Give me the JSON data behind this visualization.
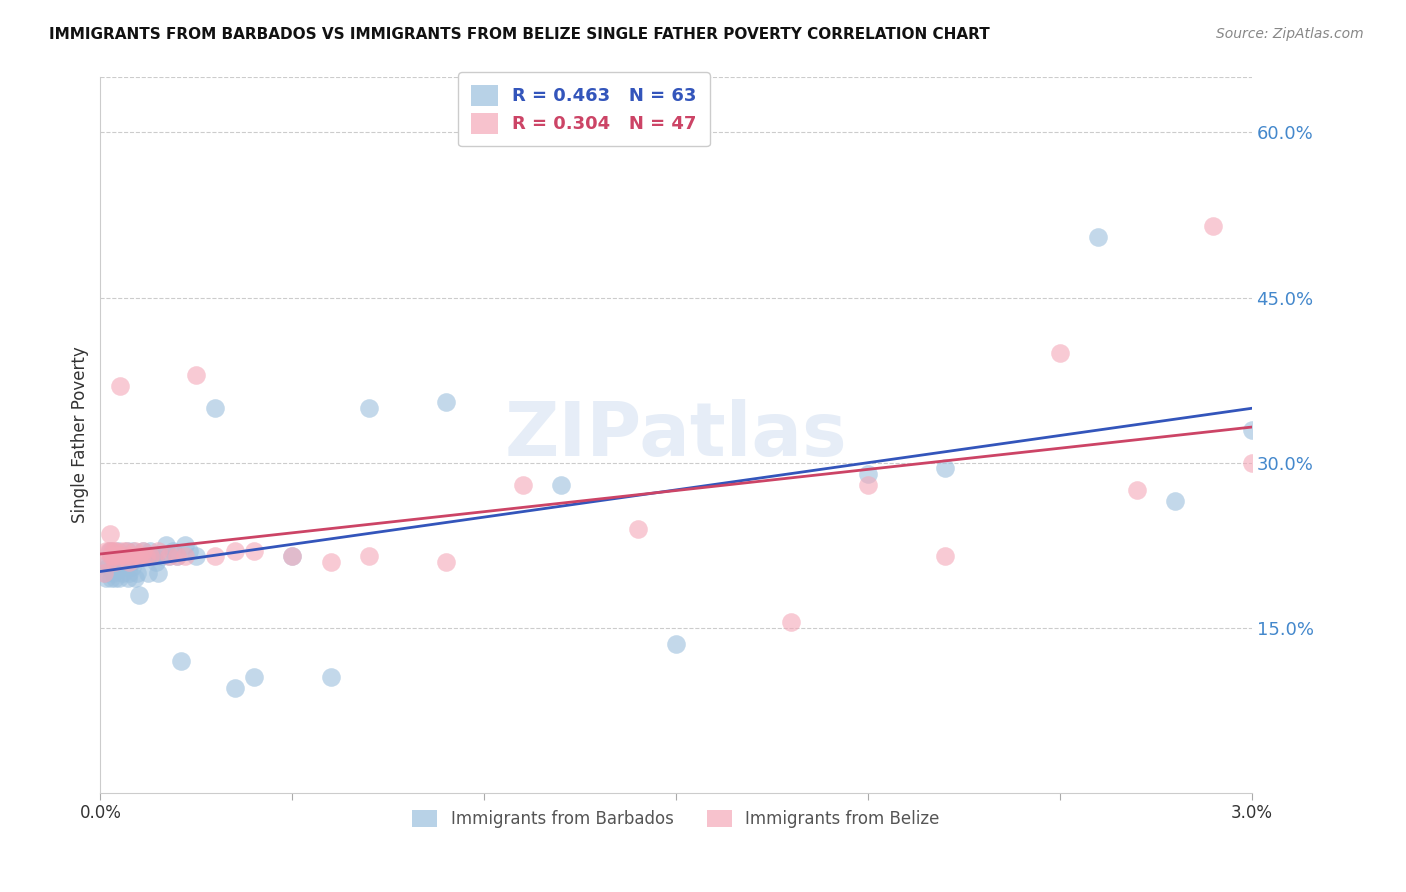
{
  "title": "IMMIGRANTS FROM BARBADOS VS IMMIGRANTS FROM BELIZE SINGLE FATHER POVERTY CORRELATION CHART",
  "source": "Source: ZipAtlas.com",
  "ylabel": "Single Father Poverty",
  "xlim": [
    0.0,
    0.03
  ],
  "ylim": [
    0.0,
    0.65
  ],
  "ytick_positions": [
    0.15,
    0.3,
    0.45,
    0.6
  ],
  "ytick_labels": [
    "15.0%",
    "30.0%",
    "45.0%",
    "60.0%"
  ],
  "barbados_color": "#9bbfdd",
  "belize_color": "#f4a8b8",
  "barbados_line_color": "#3355bb",
  "belize_line_color": "#cc4466",
  "watermark": "ZIPatlas",
  "barbados_x": [
    0.00012,
    0.00015,
    0.0002,
    0.00022,
    0.00025,
    0.00028,
    0.0003,
    0.00032,
    0.00035,
    0.00038,
    0.0004,
    0.00042,
    0.00045,
    0.00048,
    0.0005,
    0.00052,
    0.00055,
    0.00058,
    0.0006,
    0.00062,
    0.00065,
    0.0007,
    0.00072,
    0.00075,
    0.0008,
    0.00082,
    0.00085,
    0.0009,
    0.00095,
    0.001,
    0.00105,
    0.0011,
    0.00115,
    0.0012,
    0.00125,
    0.0013,
    0.00135,
    0.0014,
    0.00145,
    0.0015,
    0.0016,
    0.0017,
    0.0018,
    0.0019,
    0.002,
    0.0021,
    0.0022,
    0.0023,
    0.0025,
    0.003,
    0.0035,
    0.004,
    0.005,
    0.006,
    0.007,
    0.009,
    0.012,
    0.015,
    0.02,
    0.022,
    0.026,
    0.028,
    0.03
  ],
  "barbados_y": [
    0.2,
    0.195,
    0.205,
    0.21,
    0.22,
    0.195,
    0.215,
    0.2,
    0.215,
    0.195,
    0.21,
    0.205,
    0.22,
    0.195,
    0.21,
    0.205,
    0.215,
    0.2,
    0.21,
    0.215,
    0.205,
    0.22,
    0.195,
    0.2,
    0.21,
    0.205,
    0.22,
    0.195,
    0.2,
    0.18,
    0.215,
    0.22,
    0.215,
    0.215,
    0.2,
    0.22,
    0.215,
    0.215,
    0.21,
    0.2,
    0.215,
    0.225,
    0.215,
    0.22,
    0.215,
    0.12,
    0.225,
    0.22,
    0.215,
    0.35,
    0.095,
    0.105,
    0.215,
    0.105,
    0.35,
    0.355,
    0.28,
    0.135,
    0.29,
    0.295,
    0.505,
    0.265,
    0.33
  ],
  "belize_x": [
    0.0001,
    0.00015,
    0.0002,
    0.00022,
    0.00025,
    0.00028,
    0.0003,
    0.00032,
    0.00035,
    0.00038,
    0.0004,
    0.00045,
    0.0005,
    0.00055,
    0.0006,
    0.00065,
    0.0007,
    0.00075,
    0.0008,
    0.00085,
    0.0009,
    0.001,
    0.00105,
    0.0011,
    0.0012,
    0.0013,
    0.0015,
    0.0018,
    0.002,
    0.0022,
    0.0025,
    0.003,
    0.0035,
    0.004,
    0.005,
    0.006,
    0.007,
    0.009,
    0.011,
    0.014,
    0.018,
    0.02,
    0.022,
    0.025,
    0.027,
    0.029,
    0.03
  ],
  "belize_y": [
    0.2,
    0.22,
    0.21,
    0.22,
    0.235,
    0.215,
    0.22,
    0.215,
    0.22,
    0.21,
    0.22,
    0.215,
    0.37,
    0.215,
    0.22,
    0.215,
    0.22,
    0.21,
    0.215,
    0.215,
    0.22,
    0.215,
    0.215,
    0.22,
    0.215,
    0.215,
    0.22,
    0.215,
    0.215,
    0.215,
    0.38,
    0.215,
    0.22,
    0.22,
    0.215,
    0.21,
    0.215,
    0.21,
    0.28,
    0.24,
    0.155,
    0.28,
    0.215,
    0.4,
    0.275,
    0.515,
    0.3
  ],
  "barbados_R": 0.463,
  "barbados_N": 63,
  "belize_R": 0.304,
  "belize_N": 47,
  "legend_barbados_label": "R = 0.463   N = 63",
  "legend_belize_label": "R = 0.304   N = 47",
  "bottom_legend_barbados": "Immigrants from Barbados",
  "bottom_legend_belize": "Immigrants from Belize"
}
